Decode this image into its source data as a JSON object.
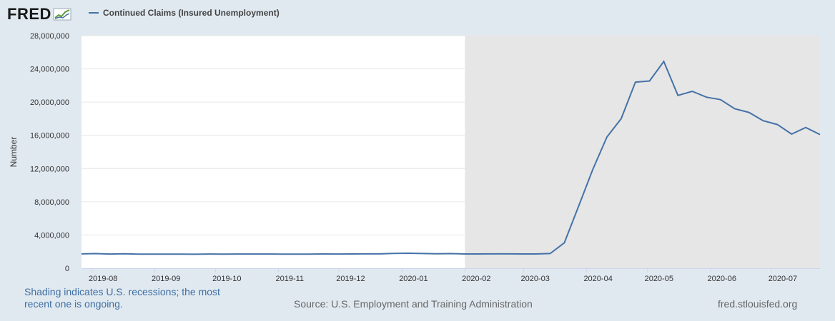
{
  "header": {
    "logo": "FRED",
    "logo_icon": "chart-line-icon",
    "legend_label": "Continued Claims (Insured Unemployment)"
  },
  "colors": {
    "series": "#4572a7",
    "recession": "#e6e6e6",
    "background": "#e1e9f0"
  },
  "footer": {
    "note_line1": "Shading indicates U.S. recessions; the most",
    "note_line2": "recent one is ongoing.",
    "source": "Source: U.S. Employment and Training Administration",
    "url": "fred.stlouisfed.org"
  },
  "chart_data": {
    "type": "line",
    "title": "",
    "xlabel": "",
    "ylabel": "Number",
    "ylim": [
      0,
      28000000
    ],
    "yticks": [
      0,
      4000000,
      8000000,
      12000000,
      16000000,
      20000000,
      24000000,
      28000000
    ],
    "ytick_labels": [
      "0",
      "4,000,000",
      "8,000,000",
      "12,000,000",
      "16,000,000",
      "20,000,000",
      "24,000,000",
      "28,000,000"
    ],
    "xlim": [
      "2019-07-27",
      "2020-07-25"
    ],
    "xticks": [
      "2019-08-01",
      "2019-09-01",
      "2019-10-01",
      "2019-11-01",
      "2019-12-01",
      "2020-01-01",
      "2020-02-01",
      "2020-03-01",
      "2020-04-01",
      "2020-05-01",
      "2020-06-01",
      "2020-07-01"
    ],
    "xtick_labels": [
      "2019-08",
      "2019-09",
      "2019-10",
      "2019-11",
      "2019-12",
      "2020-01",
      "2020-02",
      "2020-03",
      "2020-04",
      "2020-05",
      "2020-06",
      "2020-07"
    ],
    "grid": true,
    "recession_start": "2020-02-01",
    "series": [
      {
        "name": "Continued Claims (Insured Unemployment)",
        "x": [
          "2019-07-27",
          "2019-08-03",
          "2019-08-10",
          "2019-08-17",
          "2019-08-24",
          "2019-08-31",
          "2019-09-07",
          "2019-09-14",
          "2019-09-21",
          "2019-09-28",
          "2019-10-05",
          "2019-10-12",
          "2019-10-19",
          "2019-10-26",
          "2019-11-02",
          "2019-11-09",
          "2019-11-16",
          "2019-11-23",
          "2019-11-30",
          "2019-12-07",
          "2019-12-14",
          "2019-12-21",
          "2019-12-28",
          "2020-01-04",
          "2020-01-11",
          "2020-01-18",
          "2020-01-25",
          "2020-02-01",
          "2020-02-08",
          "2020-02-15",
          "2020-02-22",
          "2020-02-29",
          "2020-03-07",
          "2020-03-14",
          "2020-03-21",
          "2020-03-28",
          "2020-04-04",
          "2020-04-11",
          "2020-04-18",
          "2020-04-25",
          "2020-05-02",
          "2020-05-09",
          "2020-05-16",
          "2020-05-23",
          "2020-05-30",
          "2020-06-06",
          "2020-06-13",
          "2020-06-20",
          "2020-06-27",
          "2020-07-04",
          "2020-07-11",
          "2020-07-18",
          "2020-07-25"
        ],
        "values": [
          1730000,
          1760000,
          1710000,
          1740000,
          1700000,
          1700000,
          1700000,
          1690000,
          1680000,
          1710000,
          1700000,
          1710000,
          1710000,
          1710000,
          1700000,
          1690000,
          1690000,
          1720000,
          1710000,
          1720000,
          1730000,
          1730000,
          1790000,
          1800000,
          1770000,
          1740000,
          1760000,
          1720000,
          1720000,
          1730000,
          1730000,
          1720000,
          1720000,
          1770000,
          3060000,
          7450000,
          11900000,
          15800000,
          18000000,
          22400000,
          22550000,
          24900000,
          20800000,
          21300000,
          20600000,
          20300000,
          19200000,
          18760000,
          17760000,
          17300000,
          16150000,
          16950000,
          16100000
        ]
      }
    ]
  }
}
